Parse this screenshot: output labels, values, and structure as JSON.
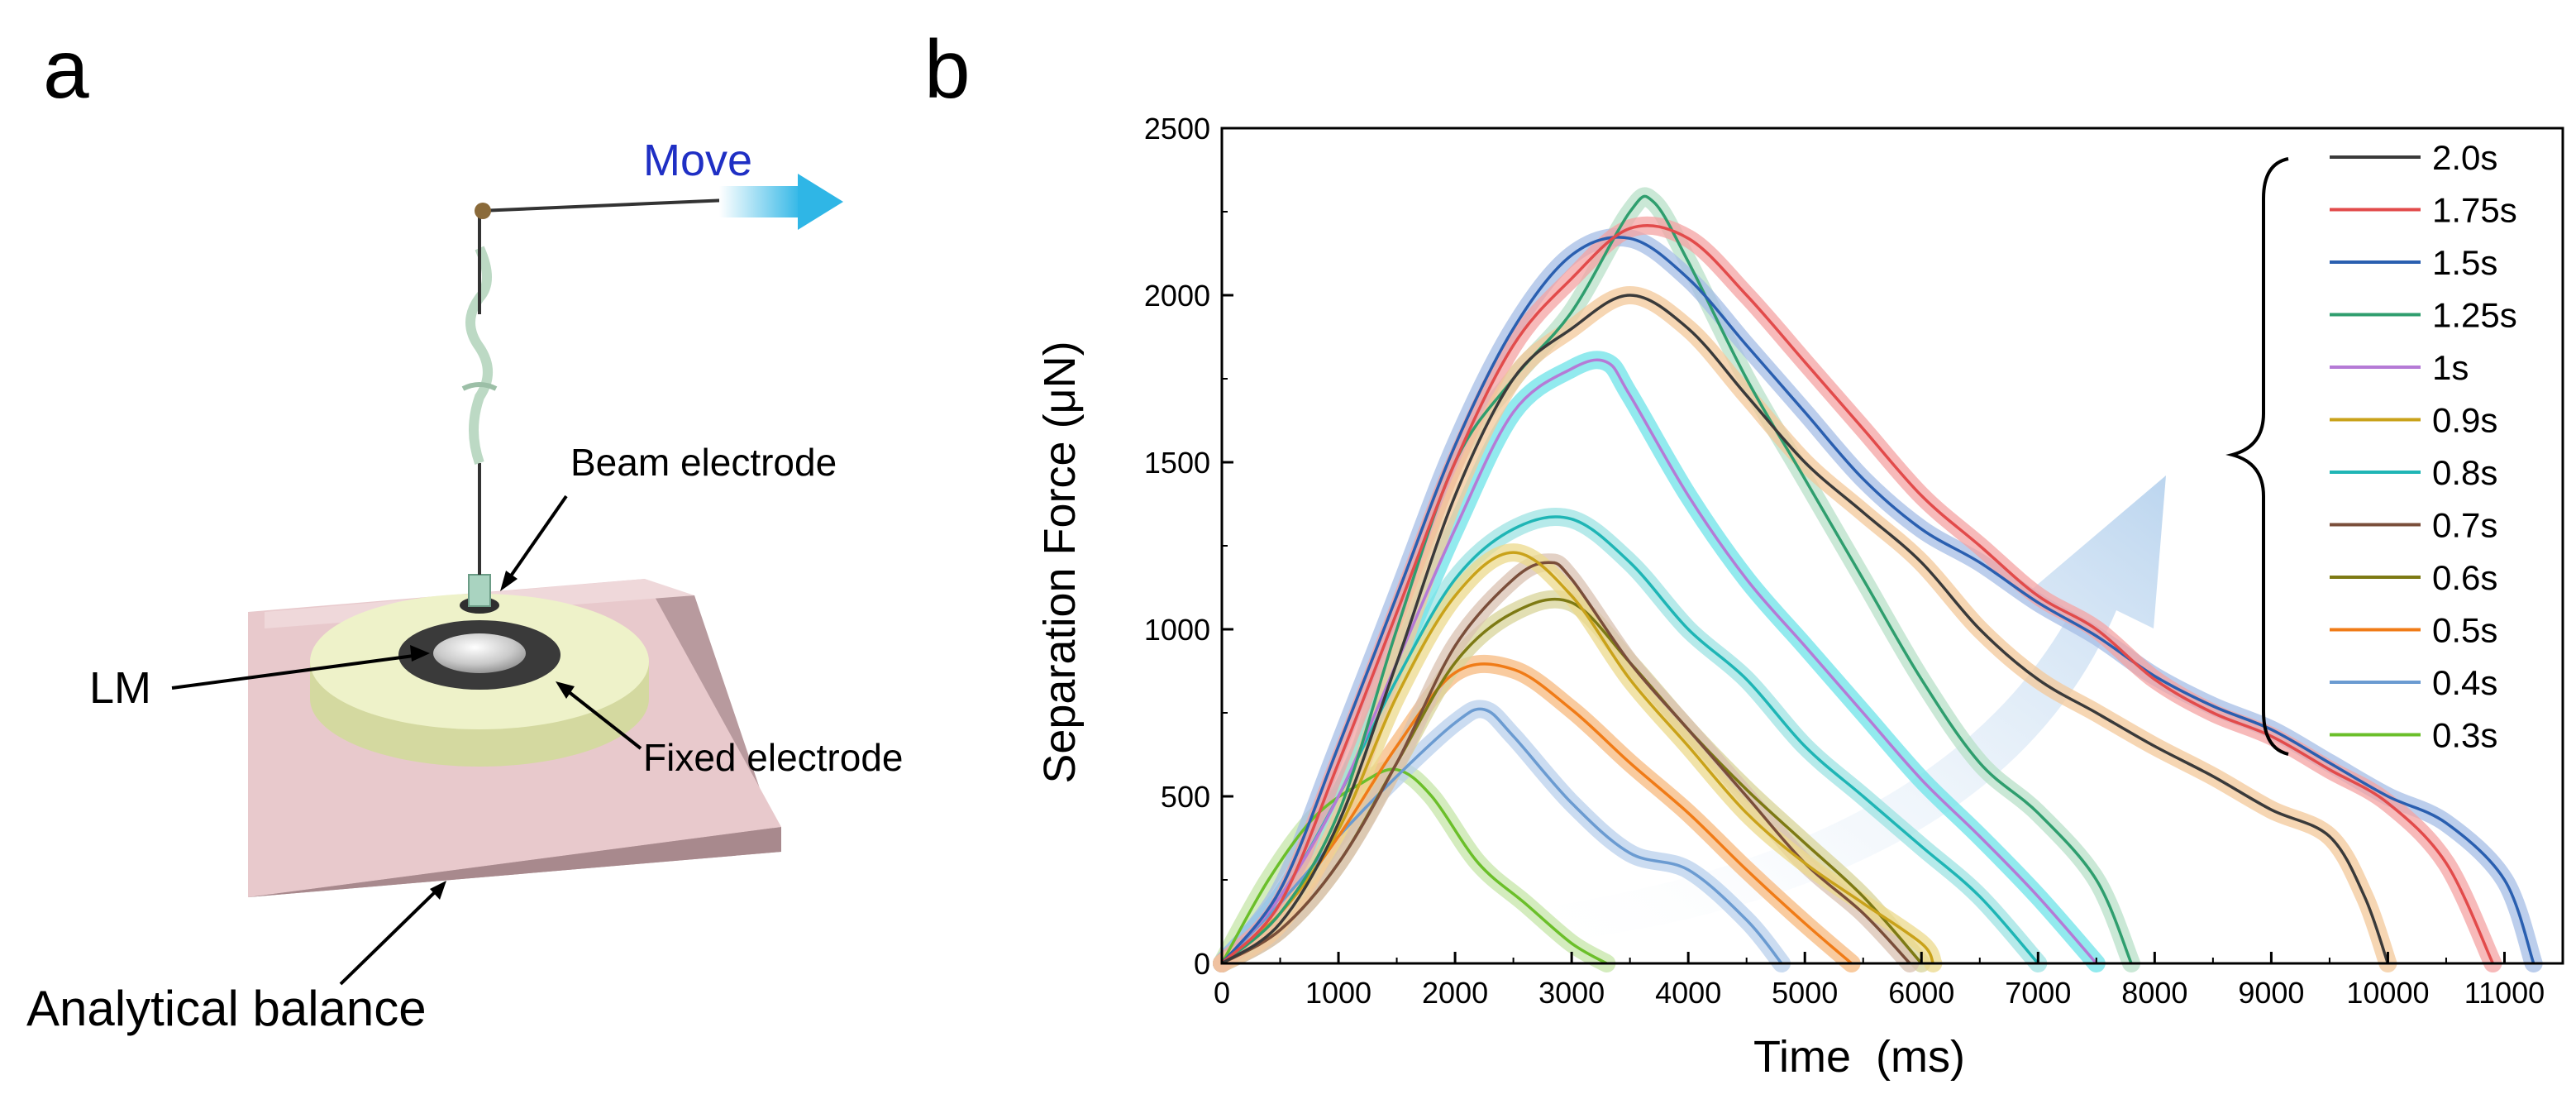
{
  "panel_a": {
    "letter": "a",
    "labels": {
      "move": "Move",
      "beam_electrode": "Beam electrode",
      "lm": "LM",
      "fixed_electrode": "Fixed electrode",
      "analytical_balance": "Analytical balance"
    }
  },
  "panel_b": {
    "letter": "b"
  },
  "chart_data": {
    "type": "line",
    "xlabel": "Time  (ms)",
    "ylabel": "Separation Force (μN)",
    "xlim": [
      0,
      11500
    ],
    "ylim": [
      0,
      2500
    ],
    "xticks": [
      0,
      1000,
      2000,
      3000,
      4000,
      5000,
      6000,
      7000,
      8000,
      9000,
      10000,
      11000
    ],
    "yticks": [
      0,
      500,
      1000,
      1500,
      2000,
      2500
    ],
    "legend_position": "right",
    "annotation": "arrow indicating increasing peak force with longer duration",
    "series": [
      {
        "name": "2.0s",
        "color": "#3a3a3a",
        "band": "#f3c89a",
        "x": [
          0,
          500,
          1000,
          1500,
          2000,
          2500,
          3000,
          3500,
          4000,
          4500,
          5000,
          5500,
          6000,
          6500,
          7000,
          7500,
          8000,
          8500,
          9000,
          9500,
          9800,
          10000
        ],
        "y": [
          0,
          120,
          420,
          900,
          1400,
          1750,
          1900,
          2000,
          1900,
          1700,
          1500,
          1350,
          1200,
          1000,
          850,
          750,
          650,
          560,
          460,
          380,
          200,
          0
        ]
      },
      {
        "name": "1.75s",
        "color": "#e24b4b",
        "band": "#f4a3a3",
        "x": [
          0,
          500,
          1000,
          1500,
          2000,
          2500,
          3000,
          3500,
          4000,
          4500,
          5000,
          5500,
          6000,
          6500,
          7000,
          7500,
          8000,
          8500,
          9000,
          9500,
          10000,
          10500,
          10900
        ],
        "y": [
          0,
          180,
          600,
          1050,
          1500,
          1850,
          2050,
          2200,
          2170,
          2000,
          1800,
          1600,
          1400,
          1250,
          1100,
          1000,
          850,
          750,
          680,
          580,
          480,
          300,
          0
        ]
      },
      {
        "name": "1.5s",
        "color": "#2a5fb0",
        "band": "#a6bde6",
        "x": [
          0,
          500,
          1000,
          1500,
          2000,
          2500,
          3000,
          3500,
          4000,
          4500,
          5000,
          5500,
          6000,
          6500,
          7000,
          7500,
          8000,
          8500,
          9000,
          9500,
          10000,
          10500,
          11000,
          11250
        ],
        "y": [
          0,
          220,
          650,
          1100,
          1550,
          1900,
          2120,
          2170,
          2050,
          1850,
          1650,
          1450,
          1300,
          1200,
          1080,
          980,
          860,
          770,
          700,
          600,
          500,
          420,
          250,
          0
        ]
      },
      {
        "name": "1.25s",
        "color": "#2f9e6e",
        "band": "#b8e0c8",
        "x": [
          0,
          500,
          1000,
          1500,
          2000,
          2500,
          3000,
          3500,
          3700,
          4000,
          4500,
          5000,
          5500,
          6000,
          6500,
          7000,
          7500,
          7800
        ],
        "y": [
          0,
          150,
          450,
          1000,
          1500,
          1750,
          1950,
          2250,
          2280,
          2100,
          1750,
          1450,
          1150,
          850,
          600,
          450,
          250,
          0
        ]
      },
      {
        "name": "1s",
        "color": "#b57ad6",
        "band": "#6ee3e8",
        "x": [
          0,
          500,
          1000,
          1500,
          2000,
          2500,
          3000,
          3300,
          3500,
          4000,
          4500,
          5000,
          5500,
          6000,
          6500,
          7000,
          7500
        ],
        "y": [
          0,
          200,
          500,
          900,
          1300,
          1650,
          1780,
          1800,
          1700,
          1400,
          1150,
          950,
          750,
          550,
          380,
          200,
          0
        ]
      },
      {
        "name": "0.9s",
        "color": "#c9a21a",
        "band": "#ecd98c",
        "x": [
          0,
          500,
          1000,
          1500,
          2000,
          2500,
          3000,
          3500,
          4000,
          4500,
          5000,
          5500,
          6000,
          6100
        ],
        "y": [
          0,
          150,
          400,
          800,
          1100,
          1230,
          1100,
          850,
          650,
          450,
          300,
          180,
          60,
          0
        ]
      },
      {
        "name": "0.8s",
        "color": "#1fb5b5",
        "band": "#9de3e3",
        "x": [
          0,
          500,
          1000,
          1500,
          2000,
          2500,
          3000,
          3500,
          4000,
          4500,
          5000,
          5500,
          6000,
          6500,
          7000
        ],
        "y": [
          0,
          200,
          500,
          850,
          1150,
          1300,
          1330,
          1200,
          1000,
          850,
          650,
          500,
          350,
          200,
          0
        ]
      },
      {
        "name": "0.7s",
        "color": "#7a4e3a",
        "band": "#d9c2b2",
        "x": [
          0,
          500,
          1000,
          1500,
          2000,
          2500,
          2800,
          3000,
          3500,
          4000,
          4500,
          5000,
          5500,
          5900
        ],
        "y": [
          0,
          100,
          300,
          600,
          950,
          1150,
          1200,
          1150,
          900,
          700,
          500,
          300,
          150,
          0
        ]
      },
      {
        "name": "0.6s",
        "color": "#7d7a14",
        "band": "#d8d49a",
        "x": [
          0,
          500,
          1000,
          1500,
          2000,
          2500,
          3000,
          3500,
          4000,
          4500,
          5000,
          5500,
          6000
        ],
        "y": [
          0,
          100,
          300,
          600,
          900,
          1050,
          1080,
          900,
          700,
          520,
          360,
          200,
          0
        ]
      },
      {
        "name": "0.5s",
        "color": "#f07b17",
        "band": "#f7b97f",
        "x": [
          0,
          500,
          1000,
          1500,
          2000,
          2500,
          3000,
          3500,
          4000,
          4500,
          5000,
          5400
        ],
        "y": [
          0,
          150,
          380,
          650,
          870,
          880,
          760,
          600,
          450,
          280,
          120,
          0
        ]
      },
      {
        "name": "0.4s",
        "color": "#6b9bd1",
        "band": "#b9d0ec",
        "x": [
          0,
          500,
          1000,
          1500,
          2000,
          2250,
          2500,
          3000,
          3500,
          4000,
          4500,
          4800
        ],
        "y": [
          0,
          180,
          380,
          560,
          720,
          760,
          680,
          480,
          330,
          280,
          130,
          0
        ]
      },
      {
        "name": "0.3s",
        "color": "#6bbf2a",
        "band": "#c5e6a8",
        "x": [
          0,
          400,
          800,
          1200,
          1500,
          1800,
          2200,
          2600,
          3000,
          3300
        ],
        "y": [
          0,
          250,
          440,
          540,
          580,
          500,
          300,
          180,
          60,
          0
        ]
      }
    ]
  }
}
